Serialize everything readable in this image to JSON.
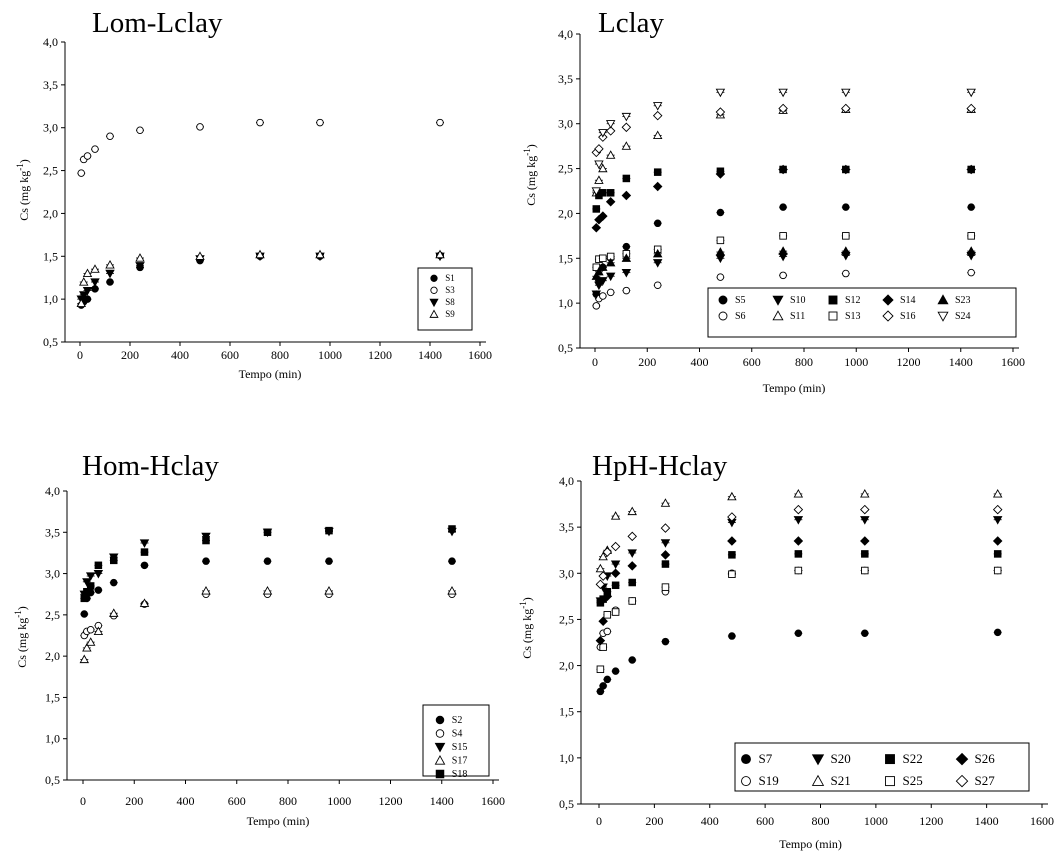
{
  "chart_data": [
    {
      "type": "scatter",
      "title": "Lom-Lclay",
      "xlabel": "Tempo (min)",
      "ylabel": "Cs (mg kg-1)",
      "xlim": [
        -100,
        1600
      ],
      "ylim": [
        0.5,
        4.0
      ],
      "xticks": [
        "0",
        "200",
        "400",
        "600",
        "800",
        "1000",
        "1200",
        "1400",
        "1600"
      ],
      "yticks": [
        "0,5",
        "1,0",
        "1,5",
        "2,0",
        "2,5",
        "3,0",
        "3,5",
        "4,0"
      ],
      "legend": "inside bottom-right, 1 column",
      "series": [
        {
          "name": "S1",
          "marker": "filled-circle",
          "x": [
            5,
            15,
            30,
            60,
            120,
            240,
            480,
            720,
            960,
            1440
          ],
          "y": [
            0.93,
            0.97,
            1.0,
            1.12,
            1.2,
            1.37,
            1.45,
            1.5,
            1.5,
            1.51
          ]
        },
        {
          "name": "S3",
          "marker": "open-circle",
          "x": [
            5,
            15,
            30,
            60,
            120,
            240,
            480,
            720,
            960,
            1440
          ],
          "y": [
            2.47,
            2.63,
            2.67,
            2.75,
            2.9,
            2.97,
            3.01,
            3.06,
            3.06,
            3.06
          ]
        },
        {
          "name": "S8",
          "marker": "filled-triangle-down",
          "x": [
            5,
            15,
            30,
            60,
            120,
            240,
            480,
            720,
            960,
            1440
          ],
          "y": [
            1.0,
            1.05,
            1.1,
            1.2,
            1.3,
            1.39,
            1.47,
            1.5,
            1.5,
            1.5
          ]
        },
        {
          "name": "S9",
          "marker": "open-triangle-up",
          "x": [
            5,
            15,
            30,
            60,
            120,
            240,
            480,
            720,
            960,
            1440
          ],
          "y": [
            0.95,
            1.2,
            1.3,
            1.35,
            1.4,
            1.48,
            1.5,
            1.52,
            1.52,
            1.52
          ]
        }
      ]
    },
    {
      "type": "scatter",
      "title": "Lclay",
      "xlabel": "Tempo (min)",
      "ylabel": "Cs (mg kg-1)",
      "xlim": [
        -100,
        1600
      ],
      "ylim": [
        0.5,
        4.0
      ],
      "xticks": [
        "0",
        "200",
        "400",
        "600",
        "800",
        "1000",
        "1200",
        "1400",
        "1600"
      ],
      "yticks": [
        "0,5",
        "1,0",
        "1,5",
        "2,0",
        "2,5",
        "3,0",
        "3,5",
        "4,0"
      ],
      "legend": "inside bottom, 2 rows",
      "series": [
        {
          "name": "S5",
          "marker": "filled-circle",
          "x": [
            5,
            15,
            30,
            60,
            120,
            240,
            480,
            720,
            960,
            1440
          ],
          "y": [
            1.1,
            1.25,
            1.4,
            1.5,
            1.63,
            1.89,
            2.01,
            2.07,
            2.07,
            2.07
          ]
        },
        {
          "name": "S6",
          "marker": "open-circle",
          "x": [
            5,
            15,
            30,
            60,
            120,
            240,
            480,
            720,
            960,
            1440
          ],
          "y": [
            0.97,
            1.05,
            1.08,
            1.12,
            1.14,
            1.2,
            1.29,
            1.31,
            1.33,
            1.34
          ]
        },
        {
          "name": "S10",
          "marker": "filled-triangle-down",
          "x": [
            5,
            15,
            30,
            60,
            120,
            240,
            480,
            720,
            960,
            1440
          ],
          "y": [
            1.1,
            1.2,
            1.25,
            1.3,
            1.34,
            1.45,
            1.5,
            1.52,
            1.53,
            1.53
          ]
        },
        {
          "name": "S11",
          "marker": "open-triangle-up",
          "x": [
            5,
            15,
            30,
            60,
            120,
            240,
            480,
            720,
            960,
            1440
          ],
          "y": [
            2.23,
            2.37,
            2.5,
            2.65,
            2.75,
            2.87,
            3.1,
            3.15,
            3.16,
            3.16
          ]
        },
        {
          "name": "S12",
          "marker": "filled-square",
          "x": [
            5,
            15,
            30,
            60,
            120,
            240,
            480,
            720,
            960,
            1440
          ],
          "y": [
            2.05,
            2.2,
            2.23,
            2.23,
            2.39,
            2.46,
            2.47,
            2.49,
            2.49,
            2.49
          ]
        },
        {
          "name": "S13",
          "marker": "open-square",
          "x": [
            5,
            15,
            30,
            60,
            120,
            240,
            480,
            720,
            960,
            1440
          ],
          "y": [
            1.4,
            1.49,
            1.5,
            1.52,
            1.55,
            1.6,
            1.7,
            1.75,
            1.75,
            1.75
          ]
        },
        {
          "name": "S14",
          "marker": "filled-diamond",
          "x": [
            5,
            15,
            30,
            60,
            120,
            240,
            480,
            720,
            960,
            1440
          ],
          "y": [
            1.84,
            1.93,
            1.97,
            2.13,
            2.2,
            2.3,
            2.44,
            2.49,
            2.49,
            2.49
          ]
        },
        {
          "name": "S16",
          "marker": "open-diamond",
          "x": [
            5,
            15,
            30,
            60,
            120,
            240,
            480,
            720,
            960,
            1440
          ],
          "y": [
            2.68,
            2.72,
            2.85,
            2.92,
            2.96,
            3.09,
            3.13,
            3.17,
            3.17,
            3.17
          ]
        },
        {
          "name": "S23",
          "marker": "filled-triangle-up",
          "x": [
            5,
            15,
            30,
            60,
            120,
            240,
            480,
            720,
            960,
            1440
          ],
          "y": [
            1.3,
            1.35,
            1.4,
            1.45,
            1.5,
            1.55,
            1.57,
            1.58,
            1.58,
            1.58
          ]
        },
        {
          "name": "S24",
          "marker": "open-triangle-down",
          "x": [
            5,
            15,
            30,
            60,
            120,
            240,
            480,
            720,
            960,
            1440
          ],
          "y": [
            2.25,
            2.55,
            2.9,
            3.0,
            3.08,
            3.2,
            3.35,
            3.35,
            3.35,
            3.35
          ]
        }
      ]
    },
    {
      "type": "scatter",
      "title": "Hom-Hclay",
      "xlabel": "Tempo (min)",
      "ylabel": "Cs (mg kg-1)",
      "xlim": [
        -100,
        1600
      ],
      "ylim": [
        0.5,
        4.0
      ],
      "xticks": [
        "0",
        "200",
        "400",
        "600",
        "800",
        "1000",
        "1200",
        "1400",
        "1600"
      ],
      "yticks": [
        "0,5",
        "1,0",
        "1,5",
        "2,0",
        "2,5",
        "3,0",
        "3,5",
        "4,0"
      ],
      "legend": "inside bottom-right, 1 column",
      "series": [
        {
          "name": "S2",
          "marker": "filled-circle",
          "x": [
            5,
            15,
            30,
            60,
            120,
            240,
            480,
            720,
            960,
            1440
          ],
          "y": [
            2.51,
            2.7,
            2.77,
            2.8,
            2.89,
            3.1,
            3.15,
            3.15,
            3.15,
            3.15
          ]
        },
        {
          "name": "S4",
          "marker": "open-circle",
          "x": [
            5,
            15,
            30,
            60,
            120,
            240,
            480,
            720,
            960,
            1440
          ],
          "y": [
            2.25,
            2.3,
            2.32,
            2.37,
            2.49,
            2.63,
            2.75,
            2.75,
            2.75,
            2.75
          ]
        },
        {
          "name": "S15",
          "marker": "filled-triangle-down",
          "x": [
            5,
            15,
            30,
            60,
            120,
            240,
            480,
            720,
            960,
            1440
          ],
          "y": [
            2.75,
            2.9,
            2.97,
            3.0,
            3.2,
            3.37,
            3.45,
            3.5,
            3.51,
            3.51
          ]
        },
        {
          "name": "S17",
          "marker": "open-triangle-up",
          "x": [
            5,
            15,
            30,
            60,
            120,
            240,
            480,
            720,
            960,
            1440
          ],
          "y": [
            1.96,
            2.1,
            2.17,
            2.3,
            2.52,
            2.64,
            2.79,
            2.79,
            2.79,
            2.79
          ]
        },
        {
          "name": "S18",
          "marker": "filled-square",
          "x": [
            5,
            15,
            30,
            60,
            120,
            240,
            480,
            720,
            960,
            1440
          ],
          "y": [
            2.7,
            2.78,
            2.85,
            3.1,
            3.16,
            3.26,
            3.4,
            3.5,
            3.52,
            3.54
          ]
        }
      ]
    },
    {
      "type": "scatter",
      "title": "HpH-Hclay",
      "xlabel": "Tempo (min)",
      "ylabel": "Cs (mg kg-1)",
      "xlim": [
        -100,
        1600
      ],
      "ylim": [
        0.5,
        4.0
      ],
      "xticks": [
        "0",
        "200",
        "400",
        "600",
        "800",
        "1000",
        "1200",
        "1400",
        "1600"
      ],
      "yticks": [
        "0,5",
        "1,0",
        "1,5",
        "2,0",
        "2,5",
        "3,0",
        "3,5",
        "4,0"
      ],
      "legend": "inside bottom-right, 2 rows",
      "series": [
        {
          "name": "S7",
          "marker": "filled-circle",
          "x": [
            5,
            15,
            30,
            60,
            120,
            240,
            480,
            720,
            960,
            1440
          ],
          "y": [
            1.72,
            1.78,
            1.85,
            1.94,
            2.06,
            2.26,
            2.32,
            2.35,
            2.35,
            2.36
          ]
        },
        {
          "name": "S19",
          "marker": "open-circle",
          "x": [
            5,
            15,
            30,
            60,
            120,
            240,
            480,
            720,
            960,
            1440
          ],
          "y": [
            2.2,
            2.35,
            2.37,
            2.6,
            2.7,
            2.8,
            3.0,
            3.03,
            3.03,
            3.03
          ]
        },
        {
          "name": "S20",
          "marker": "filled-triangle-down",
          "x": [
            5,
            15,
            30,
            60,
            120,
            240,
            480,
            720,
            960,
            1440
          ],
          "y": [
            2.7,
            2.85,
            2.97,
            3.1,
            3.22,
            3.33,
            3.55,
            3.58,
            3.58,
            3.58
          ]
        },
        {
          "name": "S21",
          "marker": "open-triangle-up",
          "x": [
            5,
            15,
            30,
            60,
            120,
            240,
            480,
            720,
            960,
            1440
          ],
          "y": [
            3.05,
            3.18,
            3.25,
            3.62,
            3.67,
            3.76,
            3.83,
            3.86,
            3.86,
            3.86
          ]
        },
        {
          "name": "S22",
          "marker": "filled-square",
          "x": [
            5,
            15,
            30,
            60,
            120,
            240,
            480,
            720,
            960,
            1440
          ],
          "y": [
            2.68,
            2.72,
            2.8,
            2.87,
            2.9,
            3.1,
            3.2,
            3.21,
            3.21,
            3.21
          ]
        },
        {
          "name": "S25",
          "marker": "open-square",
          "x": [
            5,
            15,
            30,
            60,
            120,
            240,
            480,
            720,
            960,
            1440
          ],
          "y": [
            1.96,
            2.2,
            2.55,
            2.58,
            2.7,
            2.85,
            2.99,
            3.03,
            3.03,
            3.03
          ]
        },
        {
          "name": "S26",
          "marker": "filled-diamond",
          "x": [
            5,
            15,
            30,
            60,
            120,
            240,
            480,
            720,
            960,
            1440
          ],
          "y": [
            2.27,
            2.48,
            2.75,
            3.0,
            3.08,
            3.2,
            3.35,
            3.35,
            3.35,
            3.35
          ]
        },
        {
          "name": "S27",
          "marker": "open-diamond",
          "x": [
            5,
            15,
            30,
            60,
            120,
            240,
            480,
            720,
            960,
            1440
          ],
          "y": [
            2.88,
            2.97,
            3.23,
            3.29,
            3.4,
            3.49,
            3.61,
            3.69,
            3.69,
            3.69
          ]
        }
      ]
    }
  ]
}
